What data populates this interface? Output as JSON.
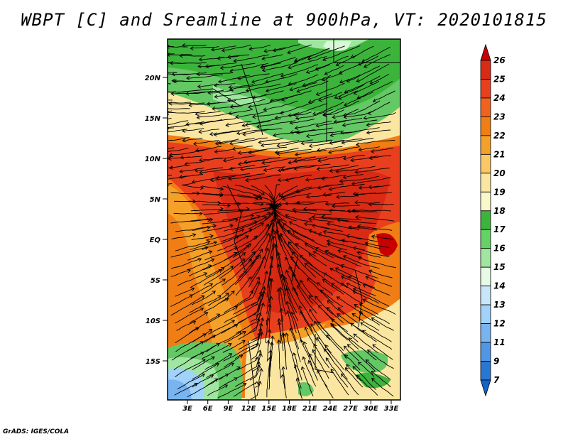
{
  "title": "WBPT [C] and Sreamline at 900hPa, VT: 2020101815",
  "footer": "GrADS: IGES/COLA",
  "map": {
    "lat_labels": [
      "20N",
      "15N",
      "10N",
      "5N",
      "EQ",
      "5S",
      "10S",
      "15S"
    ],
    "lon_labels": [
      "3E",
      "6E",
      "9E",
      "12E",
      "15E",
      "18E",
      "21E",
      "24E",
      "27E",
      "30E",
      "33E"
    ]
  },
  "colorbar": {
    "labels": [
      "26",
      "25",
      "24",
      "23",
      "22",
      "21",
      "20",
      "19",
      "18",
      "17",
      "16",
      "15",
      "14",
      "13",
      "12",
      "11",
      "9",
      "7"
    ],
    "colors": [
      "#c80000",
      "#d82a14",
      "#e8401e",
      "#f0621e",
      "#f07e14",
      "#f5a028",
      "#fac864",
      "#fae6a0",
      "#f8f8c8",
      "#3cb43c",
      "#64d264",
      "#a0e6a0",
      "#e6fae6",
      "#c8e6fa",
      "#a0d2fa",
      "#78b4f0",
      "#5096e6",
      "#2878d2",
      "#1464c8"
    ]
  }
}
